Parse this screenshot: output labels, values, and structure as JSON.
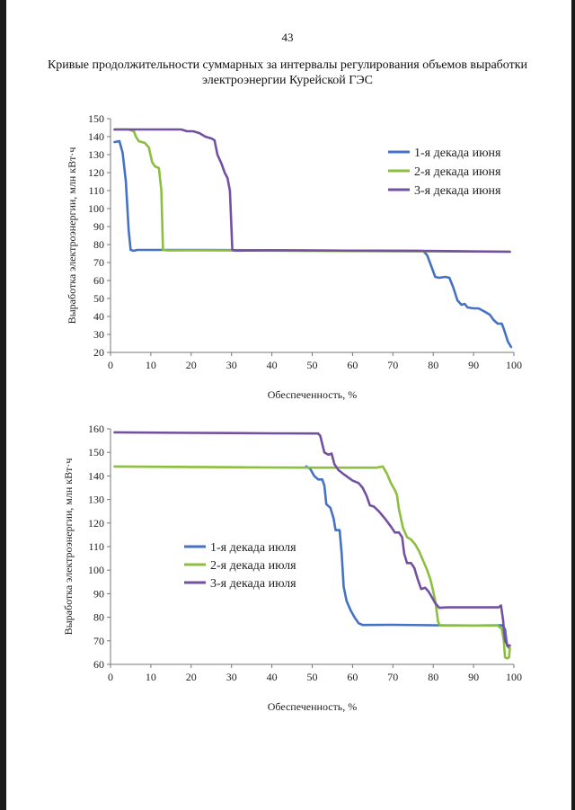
{
  "page": {
    "number": "43",
    "title_line1": "Кривые продолжительности суммарных за интервалы регулирования объемов выработки",
    "title_line2": "электроэнергии Курейской ГЭС"
  },
  "chart_data": [
    {
      "type": "line",
      "title": "",
      "xlabel": "Обеспеченность, %",
      "ylabel": "Выработка электроэнергии, млн кВт·ч",
      "xlim": [
        0,
        100
      ],
      "ylim": [
        20,
        150
      ],
      "xticks": [
        0,
        10,
        20,
        30,
        40,
        50,
        60,
        70,
        80,
        90,
        100
      ],
      "yticks": [
        20,
        30,
        40,
        50,
        60,
        70,
        80,
        90,
        100,
        110,
        120,
        130,
        140,
        150
      ],
      "grid": false,
      "legend": "top-right",
      "series": [
        {
          "name": "1-я декада июня",
          "color": "#4472c4",
          "points": [
            [
              1,
              137
            ],
            [
              2.2,
              137.5
            ],
            [
              3,
              131
            ],
            [
              3.8,
              115
            ],
            [
              4.5,
              88
            ],
            [
              5,
              77
            ],
            [
              5.8,
              76.5
            ],
            [
              6.6,
              77
            ],
            [
              10,
              77
            ],
            [
              13,
              77
            ],
            [
              20,
              77
            ],
            [
              40,
              76.8
            ],
            [
              60,
              76.6
            ],
            [
              77.5,
              76.5
            ],
            [
              78.5,
              74
            ],
            [
              79.5,
              68
            ],
            [
              80.5,
              62
            ],
            [
              81.5,
              61.5
            ],
            [
              83,
              62
            ],
            [
              84,
              61.5
            ],
            [
              85,
              56
            ],
            [
              86,
              49
            ],
            [
              87,
              46.5
            ],
            [
              87.8,
              47
            ],
            [
              88.5,
              45
            ],
            [
              90,
              44.5
            ],
            [
              91.2,
              44.5
            ],
            [
              92.5,
              43
            ],
            [
              94,
              41
            ],
            [
              95,
              38
            ],
            [
              96,
              36
            ],
            [
              97,
              36
            ],
            [
              97.5,
              33
            ],
            [
              98.5,
              26
            ],
            [
              99.3,
              23
            ]
          ]
        },
        {
          "name": "2-я декада июня",
          "color": "#8cbe3f",
          "points": [
            [
              1,
              144
            ],
            [
              4.5,
              144
            ],
            [
              5.8,
              143
            ],
            [
              6.3,
              140
            ],
            [
              7,
              137.5
            ],
            [
              8.5,
              136.5
            ],
            [
              9.5,
              134
            ],
            [
              10.3,
              126
            ],
            [
              11,
              123.5
            ],
            [
              12,
              122.5
            ],
            [
              12.6,
              110
            ],
            [
              13,
              77
            ],
            [
              14,
              76.7
            ],
            [
              20,
              76.8
            ],
            [
              40,
              76.6
            ],
            [
              60,
              76.4
            ],
            [
              80,
              76.2
            ],
            [
              99,
              76
            ]
          ]
        },
        {
          "name": "3-я декада июня",
          "color": "#7351a0",
          "points": [
            [
              1,
              144
            ],
            [
              10,
              144
            ],
            [
              17.5,
              144
            ],
            [
              19,
              143
            ],
            [
              20.5,
              143
            ],
            [
              22,
              142
            ],
            [
              23.5,
              140
            ],
            [
              25,
              139
            ],
            [
              25.8,
              138
            ],
            [
              26.5,
              130
            ],
            [
              27.5,
              125
            ],
            [
              28.3,
              120
            ],
            [
              29,
              117
            ],
            [
              29.6,
              110
            ],
            [
              30.2,
              77
            ],
            [
              31,
              76.6
            ],
            [
              40,
              76.8
            ],
            [
              60,
              76.6
            ],
            [
              80,
              76.4
            ],
            [
              99,
              76
            ]
          ]
        }
      ]
    },
    {
      "type": "line",
      "title": "",
      "xlabel": "Обеспеченность, %",
      "ylabel": "Выработка электроэнергии, млн кВт·ч",
      "xlim": [
        0,
        100
      ],
      "ylim": [
        60,
        160
      ],
      "xticks": [
        0,
        10,
        20,
        30,
        40,
        50,
        60,
        70,
        80,
        90,
        100
      ],
      "yticks": [
        60,
        70,
        80,
        90,
        100,
        110,
        120,
        130,
        140,
        150,
        160
      ],
      "grid": false,
      "legend": "center-left",
      "series": [
        {
          "name": "1-я декада июля",
          "color": "#4472c4",
          "points": [
            [
              48.5,
              144
            ],
            [
              49.5,
              143
            ],
            [
              50.5,
              140
            ],
            [
              51.5,
              138.5
            ],
            [
              52.5,
              138.5
            ],
            [
              53,
              136
            ],
            [
              53.5,
              128
            ],
            [
              54.5,
              126.5
            ],
            [
              55.3,
              122
            ],
            [
              55.8,
              117
            ],
            [
              56.8,
              117
            ],
            [
              57.3,
              107
            ],
            [
              57.8,
              93
            ],
            [
              58.5,
              87
            ],
            [
              59.5,
              83
            ],
            [
              60.5,
              80
            ],
            [
              61.5,
              77.5
            ],
            [
              62.5,
              76.7
            ],
            [
              70,
              76.8
            ],
            [
              80,
              76.6
            ],
            [
              90,
              76.5
            ],
            [
              97,
              76.6
            ],
            [
              97.8,
              75
            ],
            [
              98.3,
              68
            ],
            [
              98.8,
              67
            ]
          ]
        },
        {
          "name": "2-я декада июля",
          "color": "#8cbe3f",
          "points": [
            [
              1,
              144
            ],
            [
              20,
              143.8
            ],
            [
              40,
              143.6
            ],
            [
              50,
              143.5
            ],
            [
              60,
              143.5
            ],
            [
              66,
              143.5
            ],
            [
              67.5,
              144
            ],
            [
              68.5,
              141
            ],
            [
              69.5,
              137
            ],
            [
              70.5,
              134
            ],
            [
              71,
              132
            ],
            [
              71.5,
              126
            ],
            [
              72.5,
              118
            ],
            [
              73.5,
              114
            ],
            [
              74.5,
              113
            ],
            [
              75.5,
              111
            ],
            [
              76.5,
              108
            ],
            [
              77.5,
              104
            ],
            [
              78.5,
              100
            ],
            [
              79.3,
              96
            ],
            [
              80,
              91
            ],
            [
              80.6,
              86
            ],
            [
              81.2,
              78
            ],
            [
              81.7,
              76.5
            ],
            [
              85,
              76.5
            ],
            [
              90,
              76.5
            ],
            [
              96,
              76.5
            ],
            [
              97,
              75
            ],
            [
              97.5,
              70
            ],
            [
              97.8,
              63
            ],
            [
              98.3,
              62.5
            ],
            [
              98.8,
              63
            ],
            [
              99,
              67
            ]
          ]
        },
        {
          "name": "3-я декада июля",
          "color": "#7351a0",
          "points": [
            [
              1,
              158.5
            ],
            [
              20,
              158.3
            ],
            [
              40,
              158.1
            ],
            [
              51.5,
              158
            ],
            [
              52,
              157
            ],
            [
              53,
              150
            ],
            [
              54,
              149
            ],
            [
              54.8,
              149.5
            ],
            [
              55.5,
              145
            ],
            [
              56.5,
              142.5
            ],
            [
              58,
              140.5
            ],
            [
              60,
              138
            ],
            [
              61.5,
              137
            ],
            [
              62.5,
              135
            ],
            [
              63.5,
              131.5
            ],
            [
              64.3,
              127.5
            ],
            [
              65.3,
              127
            ],
            [
              66.5,
              125
            ],
            [
              68,
              122
            ],
            [
              69.5,
              118.5
            ],
            [
              70.5,
              116
            ],
            [
              71.5,
              116
            ],
            [
              72.3,
              114
            ],
            [
              72.8,
              107
            ],
            [
              73.5,
              103
            ],
            [
              74.5,
              103
            ],
            [
              75.3,
              101
            ],
            [
              76.2,
              96
            ],
            [
              77,
              92
            ],
            [
              78,
              92.5
            ],
            [
              78.8,
              91
            ],
            [
              79.5,
              89
            ],
            [
              80.5,
              86
            ],
            [
              81.5,
              84
            ],
            [
              83.5,
              84.2
            ],
            [
              90,
              84.2
            ],
            [
              96.2,
              84.2
            ],
            [
              96.8,
              85
            ],
            [
              97.3,
              79
            ],
            [
              97.8,
              70
            ],
            [
              98.5,
              68
            ],
            [
              99,
              68
            ]
          ]
        }
      ]
    }
  ]
}
